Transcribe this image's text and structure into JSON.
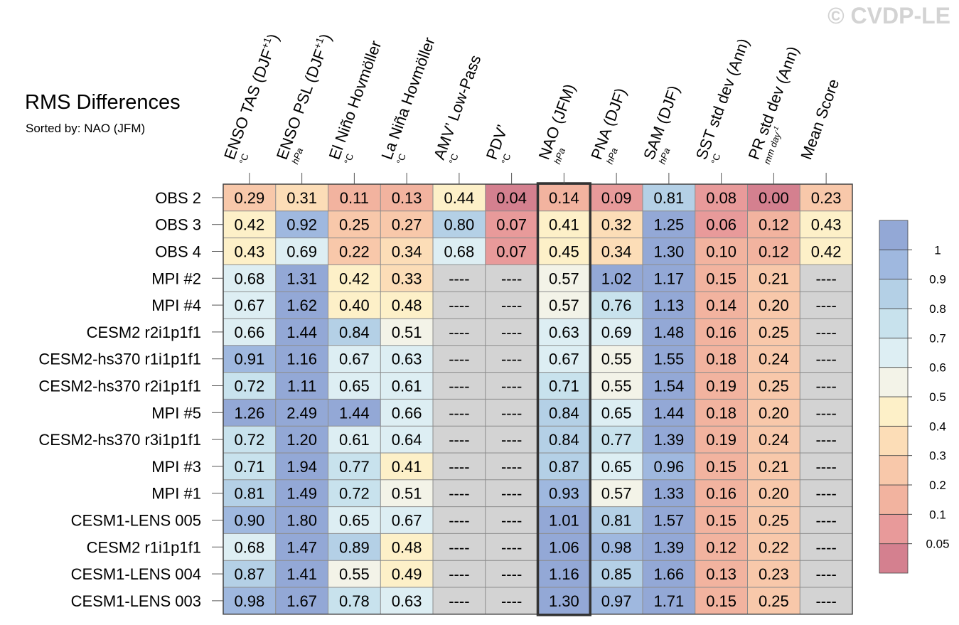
{
  "watermark": "© CVDP-LE",
  "title": "RMS Differences",
  "subtitle": "Sorted by: NAO (JFM)",
  "colors": {
    "missing": "#d3d3d3",
    "grid": "#8c8c8c",
    "highlight_border": "#333333",
    "colorbar": [
      "#d4808f",
      "#e89a9a",
      "#f2b39f",
      "#f8c8aa",
      "#fcddb7",
      "#fdf0c8",
      "#f3f3e8",
      "#ddeef3",
      "#c8e2ed",
      "#b4d0e6",
      "#9fb8df",
      "#93a8d6"
    ]
  },
  "chart_data": {
    "type": "heatmap",
    "title": "RMS Differences",
    "subtitle": "Sorted by: NAO (JFM)",
    "highlight_column": "NAO (JFM)",
    "columns": [
      {
        "name": "ENSO TAS (DJF",
        "sup": "+1",
        "tail": ")",
        "unit": "°C"
      },
      {
        "name": "ENSO PSL (DJF",
        "sup": "+1",
        "tail": ")",
        "unit": "hPa"
      },
      {
        "name": "El Niño Hovmöller",
        "sup": "",
        "tail": "",
        "unit": "°C"
      },
      {
        "name": "La Niña Hovmöller",
        "sup": "",
        "tail": "",
        "unit": "°C"
      },
      {
        "name": "AMV’ Low-Pass",
        "sup": "",
        "tail": "",
        "unit": "°C"
      },
      {
        "name": "PDV’",
        "sup": "",
        "tail": "",
        "unit": "°C"
      },
      {
        "name": "NAO (JFM)",
        "sup": "",
        "tail": "",
        "unit": "hPa"
      },
      {
        "name": "PNA (DJF)",
        "sup": "",
        "tail": "",
        "unit": "hPa"
      },
      {
        "name": "SAM (DJF)",
        "sup": "",
        "tail": "",
        "unit": "hPa"
      },
      {
        "name": "SST std dev (Ann)",
        "sup": "",
        "tail": "",
        "unit": "°C"
      },
      {
        "name": "PR std dev (Ann)",
        "sup": "",
        "tail": "",
        "unit": "mm day",
        "unit_sup": "-1"
      },
      {
        "name": "Mean Score",
        "sup": "",
        "tail": "",
        "unit": ""
      }
    ],
    "rows": [
      {
        "name": "OBS 2",
        "values": [
          "0.29",
          "0.31",
          "0.11",
          "0.13",
          "0.44",
          "0.04",
          "0.14",
          "0.09",
          "0.81",
          "0.08",
          "0.00",
          "0.23"
        ]
      },
      {
        "name": "OBS 3",
        "values": [
          "0.42",
          "0.92",
          "0.25",
          "0.27",
          "0.80",
          "0.07",
          "0.41",
          "0.32",
          "1.25",
          "0.06",
          "0.12",
          "0.43"
        ]
      },
      {
        "name": "OBS 4",
        "values": [
          "0.43",
          "0.69",
          "0.22",
          "0.34",
          "0.68",
          "0.07",
          "0.45",
          "0.34",
          "1.30",
          "0.10",
          "0.12",
          "0.42"
        ]
      },
      {
        "name": "MPI #2",
        "values": [
          "0.68",
          "1.31",
          "0.42",
          "0.33",
          "----",
          "----",
          "0.57",
          "1.02",
          "1.17",
          "0.15",
          "0.21",
          "----"
        ]
      },
      {
        "name": "MPI #4",
        "values": [
          "0.67",
          "1.62",
          "0.40",
          "0.48",
          "----",
          "----",
          "0.57",
          "0.76",
          "1.13",
          "0.14",
          "0.20",
          "----"
        ]
      },
      {
        "name": "CESM2 r2i1p1f1",
        "values": [
          "0.66",
          "1.44",
          "0.84",
          "0.51",
          "----",
          "----",
          "0.63",
          "0.69",
          "1.48",
          "0.16",
          "0.25",
          "----"
        ]
      },
      {
        "name": "CESM2-hs370 r1i1p1f1",
        "values": [
          "0.91",
          "1.16",
          "0.67",
          "0.63",
          "----",
          "----",
          "0.67",
          "0.55",
          "1.55",
          "0.18",
          "0.24",
          "----"
        ]
      },
      {
        "name": "CESM2-hs370 r2i1p1f1",
        "values": [
          "0.72",
          "1.11",
          "0.65",
          "0.61",
          "----",
          "----",
          "0.71",
          "0.55",
          "1.54",
          "0.19",
          "0.25",
          "----"
        ]
      },
      {
        "name": "MPI #5",
        "values": [
          "1.26",
          "2.49",
          "1.44",
          "0.66",
          "----",
          "----",
          "0.84",
          "0.65",
          "1.44",
          "0.18",
          "0.20",
          "----"
        ]
      },
      {
        "name": "CESM2-hs370 r3i1p1f1",
        "values": [
          "0.72",
          "1.20",
          "0.61",
          "0.64",
          "----",
          "----",
          "0.84",
          "0.77",
          "1.39",
          "0.19",
          "0.24",
          "----"
        ]
      },
      {
        "name": "MPI #3",
        "values": [
          "0.71",
          "1.94",
          "0.77",
          "0.41",
          "----",
          "----",
          "0.87",
          "0.65",
          "0.96",
          "0.15",
          "0.21",
          "----"
        ]
      },
      {
        "name": "MPI #1",
        "values": [
          "0.81",
          "1.49",
          "0.72",
          "0.51",
          "----",
          "----",
          "0.93",
          "0.57",
          "1.33",
          "0.16",
          "0.20",
          "----"
        ]
      },
      {
        "name": "CESM1-LENS 005",
        "values": [
          "0.90",
          "1.80",
          "0.65",
          "0.67",
          "----",
          "----",
          "1.01",
          "0.81",
          "1.57",
          "0.15",
          "0.25",
          "----"
        ]
      },
      {
        "name": "CESM2 r1i1p1f1",
        "values": [
          "0.68",
          "1.47",
          "0.89",
          "0.48",
          "----",
          "----",
          "1.06",
          "0.98",
          "1.39",
          "0.12",
          "0.22",
          "----"
        ]
      },
      {
        "name": "CESM1-LENS 004",
        "values": [
          "0.87",
          "1.41",
          "0.55",
          "0.49",
          "----",
          "----",
          "1.16",
          "0.85",
          "1.66",
          "0.13",
          "0.23",
          "----"
        ]
      },
      {
        "name": "CESM1-LENS 003",
        "values": [
          "0.98",
          "1.67",
          "0.78",
          "0.63",
          "----",
          "----",
          "1.30",
          "0.97",
          "1.71",
          "0.15",
          "0.25",
          "----"
        ]
      }
    ],
    "colorbar": {
      "levels": [
        0.05,
        0.1,
        0.2,
        0.3,
        0.4,
        0.5,
        0.6,
        0.7,
        0.8,
        0.9,
        1
      ],
      "labels": [
        "0.05",
        "0.1",
        "0.2",
        "0.3",
        "0.4",
        "0.5",
        "0.6",
        "0.7",
        "0.8",
        "0.9",
        "1"
      ]
    }
  }
}
